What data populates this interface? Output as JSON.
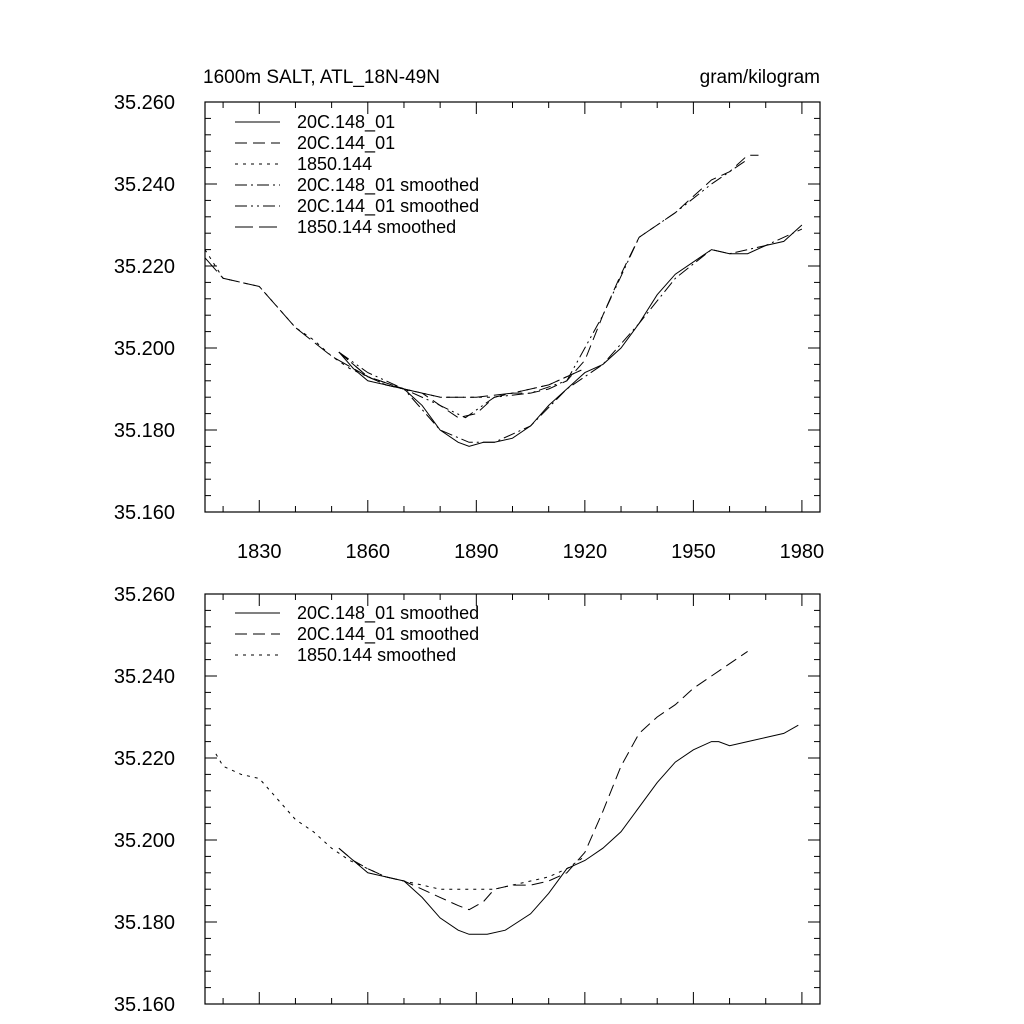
{
  "chart_data": [
    {
      "type": "line",
      "title": "1600m SALT, ATL_18N-49N",
      "units": "gram/kilogram",
      "xlim": [
        1815,
        1985
      ],
      "ylim": [
        35.16,
        35.26
      ],
      "xticks": [
        "1830",
        "1860",
        "1890",
        "1920",
        "1950",
        "1980"
      ],
      "yticks": [
        "35.260",
        "35.240",
        "35.220",
        "35.200",
        "35.180",
        "35.160"
      ],
      "series": [
        {
          "name": "20C.148_01",
          "dash": "solid",
          "x": [
            1852,
            1856,
            1860,
            1865,
            1870,
            1875,
            1880,
            1885,
            1888,
            1892,
            1895,
            1900,
            1905,
            1910,
            1915,
            1920,
            1925,
            1930,
            1935,
            1940,
            1945,
            1950,
            1955,
            1960,
            1965,
            1970,
            1975,
            1980
          ],
          "y": [
            35.199,
            35.195,
            35.192,
            35.191,
            35.19,
            35.186,
            35.18,
            35.177,
            35.176,
            35.177,
            35.177,
            35.178,
            35.181,
            35.186,
            35.19,
            35.194,
            35.196,
            35.2,
            35.206,
            35.213,
            35.218,
            35.221,
            35.224,
            35.223,
            35.223,
            35.225,
            35.226,
            35.23
          ]
        },
        {
          "name": "20C.144_01",
          "dash": "12,6",
          "x": [
            1852,
            1856,
            1860,
            1865,
            1870,
            1875,
            1880,
            1885,
            1890,
            1895,
            1900,
            1905,
            1910,
            1915,
            1920,
            1925,
            1930,
            1935,
            1940,
            1945,
            1950,
            1955,
            1960,
            1965,
            1968
          ],
          "y": [
            35.199,
            35.196,
            35.193,
            35.191,
            35.19,
            35.189,
            35.186,
            35.183,
            35.184,
            35.188,
            35.189,
            35.189,
            35.19,
            35.192,
            35.197,
            35.208,
            35.218,
            35.227,
            35.23,
            35.233,
            35.237,
            35.241,
            35.243,
            35.247,
            35.247
          ]
        },
        {
          "name": "1850.144",
          "dash": "3,5",
          "x": [
            1815,
            1820,
            1825,
            1830,
            1835,
            1840,
            1845,
            1850,
            1855,
            1860,
            1865,
            1870,
            1875,
            1880,
            1885,
            1890,
            1895,
            1900,
            1905,
            1910,
            1915,
            1920
          ],
          "y": [
            35.224,
            35.217,
            35.216,
            35.215,
            35.21,
            35.205,
            35.202,
            35.198,
            35.195,
            35.193,
            35.191,
            35.19,
            35.189,
            35.188,
            35.188,
            35.188,
            35.188,
            35.189,
            35.19,
            35.191,
            35.193,
            35.195
          ]
        },
        {
          "name": "20C.148_01 smoothed",
          "dash": "12,4,2,4",
          "x": [
            1852,
            1860,
            1870,
            1880,
            1888,
            1895,
            1905,
            1915,
            1925,
            1935,
            1945,
            1955,
            1960,
            1970,
            1980
          ],
          "y": [
            35.199,
            35.193,
            35.19,
            35.18,
            35.177,
            35.177,
            35.181,
            35.19,
            35.196,
            35.206,
            35.217,
            35.224,
            35.223,
            35.225,
            35.229
          ]
        },
        {
          "name": "20C.144_01 smoothed",
          "dash": "12,4,2,4,2,4",
          "x": [
            1852,
            1860,
            1870,
            1880,
            1887,
            1895,
            1905,
            1915,
            1925,
            1935,
            1945,
            1955,
            1965
          ],
          "y": [
            35.199,
            35.194,
            35.19,
            35.186,
            35.183,
            35.188,
            35.189,
            35.192,
            35.208,
            35.227,
            35.233,
            35.24,
            35.246
          ]
        },
        {
          "name": "1850.144 smoothed",
          "dash": "18,6",
          "x": [
            1815,
            1820,
            1830,
            1840,
            1850,
            1860,
            1870,
            1880,
            1890,
            1900,
            1910,
            1920
          ],
          "y": [
            35.222,
            35.217,
            35.215,
            35.205,
            35.198,
            35.193,
            35.19,
            35.188,
            35.188,
            35.189,
            35.191,
            35.195
          ]
        }
      ]
    },
    {
      "type": "line",
      "title": "",
      "units": "",
      "xlim": [
        1815,
        1985
      ],
      "ylim": [
        35.16,
        35.26
      ],
      "xticks": [],
      "yticks": [
        "35.260",
        "35.240",
        "35.220",
        "35.200",
        "35.180",
        "35.160"
      ],
      "series": [
        {
          "name": "20C.148_01 smoothed",
          "dash": "solid",
          "x": [
            1852,
            1856,
            1860,
            1865,
            1870,
            1875,
            1880,
            1885,
            1888,
            1893,
            1898,
            1905,
            1910,
            1915,
            1920,
            1925,
            1930,
            1935,
            1940,
            1945,
            1950,
            1955,
            1957,
            1960,
            1965,
            1970,
            1975,
            1979
          ],
          "y": [
            35.198,
            35.195,
            35.192,
            35.191,
            35.19,
            35.186,
            35.181,
            35.178,
            35.177,
            35.177,
            35.178,
            35.182,
            35.187,
            35.193,
            35.195,
            35.198,
            35.202,
            35.208,
            35.214,
            35.219,
            35.222,
            35.224,
            35.224,
            35.223,
            35.224,
            35.225,
            35.226,
            35.228
          ]
        },
        {
          "name": "20C.144_01 smoothed",
          "dash": "12,6",
          "x": [
            1852,
            1856,
            1860,
            1865,
            1870,
            1875,
            1880,
            1885,
            1888,
            1892,
            1895,
            1900,
            1905,
            1910,
            1915,
            1920,
            1925,
            1930,
            1935,
            1940,
            1945,
            1950,
            1955,
            1960,
            1965
          ],
          "y": [
            35.198,
            35.195,
            35.193,
            35.191,
            35.19,
            35.188,
            35.186,
            35.184,
            35.183,
            35.185,
            35.188,
            35.189,
            35.189,
            35.19,
            35.192,
            35.197,
            35.207,
            35.218,
            35.226,
            35.23,
            35.233,
            35.237,
            35.24,
            35.243,
            35.246
          ]
        },
        {
          "name": "1850.144 smoothed",
          "dash": "3,5",
          "x": [
            1818,
            1820,
            1825,
            1830,
            1835,
            1840,
            1845,
            1850,
            1855,
            1860,
            1865,
            1870,
            1875,
            1880,
            1885,
            1890,
            1895,
            1900,
            1905,
            1910,
            1915,
            1920
          ],
          "y": [
            35.221,
            35.218,
            35.216,
            35.215,
            35.21,
            35.205,
            35.202,
            35.198,
            35.195,
            35.193,
            35.191,
            35.19,
            35.189,
            35.188,
            35.188,
            35.188,
            35.188,
            35.189,
            35.19,
            35.191,
            35.193,
            35.196
          ]
        }
      ]
    }
  ]
}
